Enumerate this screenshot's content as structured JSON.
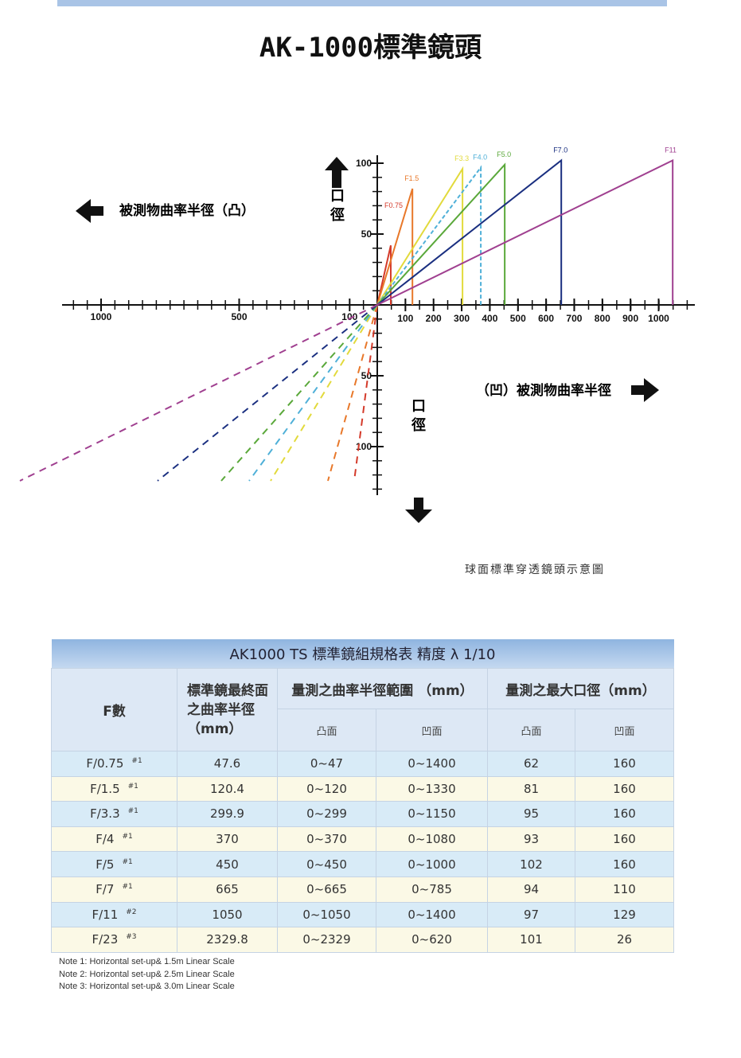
{
  "header": {
    "title": "AK-1000標準鏡頭"
  },
  "diagram": {
    "left_label": "被測物曲率半徑（凸）",
    "right_label": "（凹）被測物曲率半徑",
    "y_label_top": "口徑",
    "y_label_bottom": "口徑",
    "x_ticks_left": [
      1000,
      500,
      100
    ],
    "x_ticks_right": [
      100,
      200,
      300,
      400,
      500,
      600,
      700,
      800,
      900,
      1000
    ],
    "y_ticks_top": [
      100,
      50
    ],
    "y_ticks_bottom": [
      50,
      100
    ],
    "lenses": [
      {
        "label": "F0.75",
        "radius": 48,
        "aperture": 42,
        "color": "#d43a2a"
      },
      {
        "label": "F1.5",
        "radius": 125,
        "aperture": 82,
        "color": "#e8782a"
      },
      {
        "label": "F3.3",
        "radius": 303,
        "aperture": 96,
        "color": "#e2da3c"
      },
      {
        "label": "F4.0",
        "radius": 368,
        "aperture": 97,
        "color": "#4fb0d8",
        "dashed": true
      },
      {
        "label": "F5.0",
        "radius": 453,
        "aperture": 99,
        "color": "#5aa83a"
      },
      {
        "label": "F7.0",
        "radius": 654,
        "aperture": 102,
        "color": "#1a2f80"
      },
      {
        "label": "F11",
        "radius": 1050,
        "aperture": 102,
        "color": "#a04090"
      }
    ],
    "caption": "球面標準穿透鏡頭示意圖"
  },
  "table": {
    "title": "AK1000 TS  標準鏡組規格表  精度 λ 1/10",
    "col_f": "F數",
    "col_radius": "標準鏡最終面之曲率半徑 （mm）",
    "col_range": "量測之曲率半徑範圍 （mm）",
    "col_aperture": "量測之最大口徑（mm）",
    "sub": [
      "凸面",
      "凹面",
      "凸面",
      "凹面"
    ],
    "rows": [
      [
        "F/0.75",
        "#1",
        "47.6",
        "0~47",
        "0~1400",
        "62",
        "160"
      ],
      [
        "F/1.5",
        "#1",
        "120.4",
        "0~120",
        "0~1330",
        "81",
        "160"
      ],
      [
        "F/3.3",
        "#1",
        "299.9",
        "0~299",
        "0~1150",
        "95",
        "160"
      ],
      [
        "F/4",
        "#1",
        "370",
        "0~370",
        "0~1080",
        "93",
        "160"
      ],
      [
        "F/5",
        "#1",
        "450",
        "0~450",
        "0~1000",
        "102",
        "160"
      ],
      [
        "F/7",
        "#1",
        "665",
        "0~665",
        "0~785",
        "94",
        "110"
      ],
      [
        "F/11",
        "#2",
        "1050",
        "0~1050",
        "0~1400",
        "97",
        "129"
      ],
      [
        "F/23",
        "#3",
        "2329.8",
        "0~2329",
        "0~620",
        "101",
        "26"
      ]
    ]
  },
  "notes": [
    "Note 1: Horizontal set-up& 1.5m Linear Scale",
    "Note 2: Horizontal set-up& 2.5m Linear Scale",
    "Note 3: Horizontal set-up& 3.0m Linear Scale"
  ]
}
